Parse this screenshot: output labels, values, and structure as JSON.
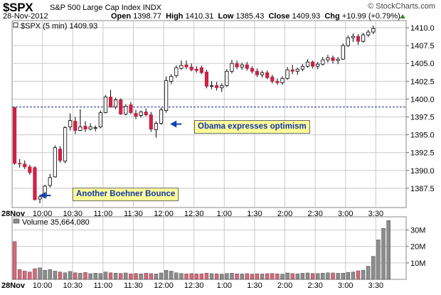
{
  "header": {
    "symbol": "$SPX",
    "name": "S&P 500 Large Cap Index",
    "exchange": "INDX",
    "date": "28-Nov-2012",
    "brand": "© StockCharts.com",
    "open_label": "Open",
    "open": "1398.77",
    "high_label": "High",
    "high": "1410.31",
    "low_label": "Low",
    "low": "1385.43",
    "close_label": "Close",
    "close": "1409.93",
    "chg_label": "Chg",
    "chg": "+10.99 (+0.79%)",
    "chg_color": "#3c8a2e"
  },
  "price_legend": "$SPX (5 min) 1409.93",
  "volume_legend": "Volume 35,664,080",
  "colors": {
    "up": "#ffffff",
    "down": "#cc2244",
    "grid": "#c9c9c9",
    "ref_line": "#22339a",
    "vol_up": "#8c8c8c",
    "vol_down": "#d9677a"
  },
  "annotations": [
    {
      "text": "Obama expresses optimism",
      "time": "12:05",
      "price": 1396.5
    },
    {
      "text": "Another Boehner Bounce",
      "time": "9:55",
      "price": 1386.5
    }
  ],
  "chart_data": [
    {
      "type": "candlestick",
      "interval": "5 min",
      "ylim": [
        1384.8,
        1411.0
      ],
      "y_ticks": [
        1387.5,
        1390.0,
        1392.5,
        1395.0,
        1397.5,
        1400.0,
        1402.5,
        1405.0,
        1407.5,
        1410.0
      ],
      "y_tick_labels": [
        "1387.5",
        "1390.0",
        "1392.5",
        "1395.0",
        "1397.5",
        "1400.0",
        "1402.5",
        "1405.0",
        "1407.5",
        "1410.0"
      ],
      "x_start": "9:30",
      "x_end": "4:00",
      "x_ticks": [
        "10:00",
        "10:30",
        "11:00",
        "11:30",
        "12:00",
        "12:30",
        "1:00",
        "1:30",
        "2:00",
        "2:30",
        "3:00",
        "3:30"
      ],
      "x_first_label": "28Nov",
      "reference_line": 1398.9,
      "grid": true,
      "candles": [
        {
          "t": "9:30",
          "o": 1398.8,
          "h": 1398.9,
          "l": 1390.8,
          "c": 1391.0
        },
        {
          "t": "9:35",
          "o": 1391.0,
          "h": 1391.6,
          "l": 1390.4,
          "c": 1390.9
        },
        {
          "t": "9:40",
          "o": 1390.9,
          "h": 1391.4,
          "l": 1390.2,
          "c": 1390.5
        },
        {
          "t": "9:45",
          "o": 1390.5,
          "h": 1390.8,
          "l": 1389.4,
          "c": 1389.7
        },
        {
          "t": "9:50",
          "o": 1390.4,
          "h": 1390.6,
          "l": 1385.8,
          "c": 1385.9
        },
        {
          "t": "9:55",
          "o": 1386.0,
          "h": 1386.6,
          "l": 1385.4,
          "c": 1386.3
        },
        {
          "t": "10:00",
          "o": 1386.3,
          "h": 1388.0,
          "l": 1386.1,
          "c": 1387.8
        },
        {
          "t": "10:05",
          "o": 1387.9,
          "h": 1389.5,
          "l": 1387.6,
          "c": 1389.0
        },
        {
          "t": "10:10",
          "o": 1389.1,
          "h": 1393.5,
          "l": 1389.0,
          "c": 1393.2
        },
        {
          "t": "10:15",
          "o": 1393.0,
          "h": 1393.4,
          "l": 1391.1,
          "c": 1391.4
        },
        {
          "t": "10:20",
          "o": 1391.3,
          "h": 1396.2,
          "l": 1391.0,
          "c": 1396.0
        },
        {
          "t": "10:25",
          "o": 1396.1,
          "h": 1398.0,
          "l": 1395.6,
          "c": 1397.0
        },
        {
          "t": "10:30",
          "o": 1396.9,
          "h": 1397.5,
          "l": 1395.1,
          "c": 1395.6
        },
        {
          "t": "10:35",
          "o": 1395.6,
          "h": 1398.6,
          "l": 1395.5,
          "c": 1396.1
        },
        {
          "t": "10:40",
          "o": 1396.2,
          "h": 1396.9,
          "l": 1395.4,
          "c": 1395.8
        },
        {
          "t": "10:45",
          "o": 1395.8,
          "h": 1396.6,
          "l": 1395.6,
          "c": 1396.1
        },
        {
          "t": "10:50",
          "o": 1396.0,
          "h": 1396.3,
          "l": 1395.5,
          "c": 1396.0
        },
        {
          "t": "10:55",
          "o": 1396.1,
          "h": 1398.4,
          "l": 1395.9,
          "c": 1398.1
        },
        {
          "t": "11:00",
          "o": 1398.1,
          "h": 1400.6,
          "l": 1398.0,
          "c": 1400.3
        },
        {
          "t": "11:05",
          "o": 1400.3,
          "h": 1401.3,
          "l": 1398.8,
          "c": 1398.9
        },
        {
          "t": "11:10",
          "o": 1398.9,
          "h": 1400.2,
          "l": 1398.6,
          "c": 1399.9
        },
        {
          "t": "11:15",
          "o": 1399.9,
          "h": 1400.1,
          "l": 1397.8,
          "c": 1397.9
        },
        {
          "t": "11:20",
          "o": 1397.9,
          "h": 1399.3,
          "l": 1397.7,
          "c": 1399.0
        },
        {
          "t": "11:25",
          "o": 1399.2,
          "h": 1399.6,
          "l": 1397.9,
          "c": 1398.1
        },
        {
          "t": "11:30",
          "o": 1398.0,
          "h": 1398.5,
          "l": 1397.2,
          "c": 1397.6
        },
        {
          "t": "11:35",
          "o": 1397.7,
          "h": 1398.4,
          "l": 1397.4,
          "c": 1398.2
        },
        {
          "t": "11:40",
          "o": 1398.2,
          "h": 1398.7,
          "l": 1397.6,
          "c": 1397.8
        },
        {
          "t": "11:45",
          "o": 1397.8,
          "h": 1398.2,
          "l": 1395.4,
          "c": 1395.8
        },
        {
          "t": "11:50",
          "o": 1395.7,
          "h": 1396.9,
          "l": 1394.6,
          "c": 1396.6
        },
        {
          "t": "11:55",
          "o": 1396.6,
          "h": 1398.8,
          "l": 1396.4,
          "c": 1398.5
        },
        {
          "t": "12:00",
          "o": 1398.4,
          "h": 1403.2,
          "l": 1398.1,
          "c": 1402.6
        },
        {
          "t": "12:05",
          "o": 1402.5,
          "h": 1403.5,
          "l": 1402.1,
          "c": 1403.2
        },
        {
          "t": "12:10",
          "o": 1403.3,
          "h": 1404.7,
          "l": 1403.0,
          "c": 1404.4
        },
        {
          "t": "12:15",
          "o": 1404.3,
          "h": 1405.4,
          "l": 1404.1,
          "c": 1404.7
        },
        {
          "t": "12:20",
          "o": 1404.8,
          "h": 1405.4,
          "l": 1404.2,
          "c": 1404.5
        },
        {
          "t": "12:25",
          "o": 1404.5,
          "h": 1405.0,
          "l": 1403.9,
          "c": 1404.1
        },
        {
          "t": "12:30",
          "o": 1404.2,
          "h": 1404.6,
          "l": 1403.7,
          "c": 1404.0
        },
        {
          "t": "12:35",
          "o": 1404.4,
          "h": 1404.7,
          "l": 1403.5,
          "c": 1403.7
        },
        {
          "t": "12:40",
          "o": 1403.8,
          "h": 1404.1,
          "l": 1401.5,
          "c": 1401.8
        },
        {
          "t": "12:45",
          "o": 1401.8,
          "h": 1402.5,
          "l": 1401.4,
          "c": 1401.9
        },
        {
          "t": "12:50",
          "o": 1401.9,
          "h": 1402.4,
          "l": 1401.2,
          "c": 1401.6
        },
        {
          "t": "12:55",
          "o": 1401.6,
          "h": 1402.2,
          "l": 1401.0,
          "c": 1401.9
        },
        {
          "t": "1:00",
          "o": 1401.9,
          "h": 1404.2,
          "l": 1401.7,
          "c": 1403.9
        },
        {
          "t": "1:05",
          "o": 1403.9,
          "h": 1405.5,
          "l": 1403.6,
          "c": 1405.0
        },
        {
          "t": "1:10",
          "o": 1405.0,
          "h": 1405.4,
          "l": 1404.2,
          "c": 1404.5
        },
        {
          "t": "1:15",
          "o": 1404.5,
          "h": 1405.1,
          "l": 1404.1,
          "c": 1404.8
        },
        {
          "t": "1:20",
          "o": 1404.8,
          "h": 1405.2,
          "l": 1404.0,
          "c": 1404.3
        },
        {
          "t": "1:25",
          "o": 1404.3,
          "h": 1404.6,
          "l": 1403.6,
          "c": 1403.9
        },
        {
          "t": "1:30",
          "o": 1403.9,
          "h": 1404.3,
          "l": 1403.1,
          "c": 1403.4
        },
        {
          "t": "1:35",
          "o": 1403.4,
          "h": 1404.0,
          "l": 1403.0,
          "c": 1403.7
        },
        {
          "t": "1:40",
          "o": 1403.7,
          "h": 1404.0,
          "l": 1402.8,
          "c": 1403.0
        },
        {
          "t": "1:45",
          "o": 1403.1,
          "h": 1403.4,
          "l": 1402.2,
          "c": 1402.5
        },
        {
          "t": "1:50",
          "o": 1402.5,
          "h": 1402.9,
          "l": 1402.0,
          "c": 1402.3
        },
        {
          "t": "1:55",
          "o": 1402.3,
          "h": 1403.2,
          "l": 1402.0,
          "c": 1402.9
        },
        {
          "t": "2:00",
          "o": 1402.9,
          "h": 1404.5,
          "l": 1402.7,
          "c": 1404.1
        },
        {
          "t": "2:05",
          "o": 1404.1,
          "h": 1404.8,
          "l": 1403.5,
          "c": 1403.9
        },
        {
          "t": "2:10",
          "o": 1403.9,
          "h": 1404.4,
          "l": 1403.4,
          "c": 1404.2
        },
        {
          "t": "2:15",
          "o": 1404.2,
          "h": 1404.9,
          "l": 1403.9,
          "c": 1404.6
        },
        {
          "t": "2:20",
          "o": 1404.6,
          "h": 1405.6,
          "l": 1404.4,
          "c": 1405.2
        },
        {
          "t": "2:25",
          "o": 1405.2,
          "h": 1405.4,
          "l": 1404.3,
          "c": 1404.6
        },
        {
          "t": "2:30",
          "o": 1404.6,
          "h": 1405.2,
          "l": 1404.2,
          "c": 1404.9
        },
        {
          "t": "2:35",
          "o": 1404.9,
          "h": 1405.9,
          "l": 1404.7,
          "c": 1405.5
        },
        {
          "t": "2:40",
          "o": 1405.5,
          "h": 1406.2,
          "l": 1405.1,
          "c": 1405.8
        },
        {
          "t": "2:45",
          "o": 1405.8,
          "h": 1406.1,
          "l": 1405.0,
          "c": 1405.4
        },
        {
          "t": "2:50",
          "o": 1405.4,
          "h": 1405.9,
          "l": 1404.9,
          "c": 1405.6
        },
        {
          "t": "2:55",
          "o": 1405.6,
          "h": 1407.8,
          "l": 1405.5,
          "c": 1407.5
        },
        {
          "t": "3:00",
          "o": 1407.5,
          "h": 1408.9,
          "l": 1407.3,
          "c": 1408.6
        },
        {
          "t": "3:05",
          "o": 1408.6,
          "h": 1409.2,
          "l": 1408.0,
          "c": 1408.8
        },
        {
          "t": "3:10",
          "o": 1408.8,
          "h": 1409.1,
          "l": 1407.6,
          "c": 1408.1
        },
        {
          "t": "3:15",
          "o": 1408.1,
          "h": 1409.3,
          "l": 1407.9,
          "c": 1409.0
        },
        {
          "t": "3:20",
          "o": 1409.0,
          "h": 1409.7,
          "l": 1408.7,
          "c": 1409.4
        },
        {
          "t": "3:25",
          "o": 1409.4,
          "h": 1410.3,
          "l": 1409.1,
          "c": 1409.9
        }
      ]
    },
    {
      "type": "bar",
      "title": "Volume 35,664,080",
      "ylim": [
        0,
        38
      ],
      "y_ticks": [
        10,
        20,
        30
      ],
      "y_tick_labels": [
        "10M",
        "20M",
        "30M"
      ],
      "x_ticks": [
        "10:00",
        "10:30",
        "11:00",
        "11:30",
        "12:00",
        "12:30",
        "1:00",
        "1:30",
        "2:00",
        "2:30",
        "3:00",
        "3:30"
      ],
      "x_first_label": "28Nov",
      "values_millions": [
        23.0,
        6.0,
        5.0,
        4.5,
        6.5,
        7.0,
        5.5,
        6.0,
        5.0,
        4.5,
        4.0,
        4.8,
        4.0,
        3.8,
        4.2,
        3.5,
        3.8,
        3.6,
        4.5,
        4.0,
        3.8,
        3.6,
        3.9,
        3.4,
        3.6,
        3.4,
        3.8,
        3.5,
        3.3,
        3.9,
        5.5,
        5.0,
        4.0,
        3.6,
        3.4,
        3.5,
        3.3,
        3.4,
        3.8,
        3.5,
        3.4,
        3.2,
        3.6,
        3.8,
        3.4,
        3.3,
        3.5,
        3.2,
        3.4,
        3.3,
        3.5,
        3.6,
        3.4,
        3.2,
        3.9,
        3.6,
        3.4,
        3.7,
        3.9,
        3.6,
        3.6,
        3.8,
        4.0,
        3.9,
        3.7,
        3.8,
        4.2,
        4.5,
        5.2,
        5.6,
        8.0,
        14.0,
        24.0,
        31.0,
        35.7
      ]
    }
  ]
}
